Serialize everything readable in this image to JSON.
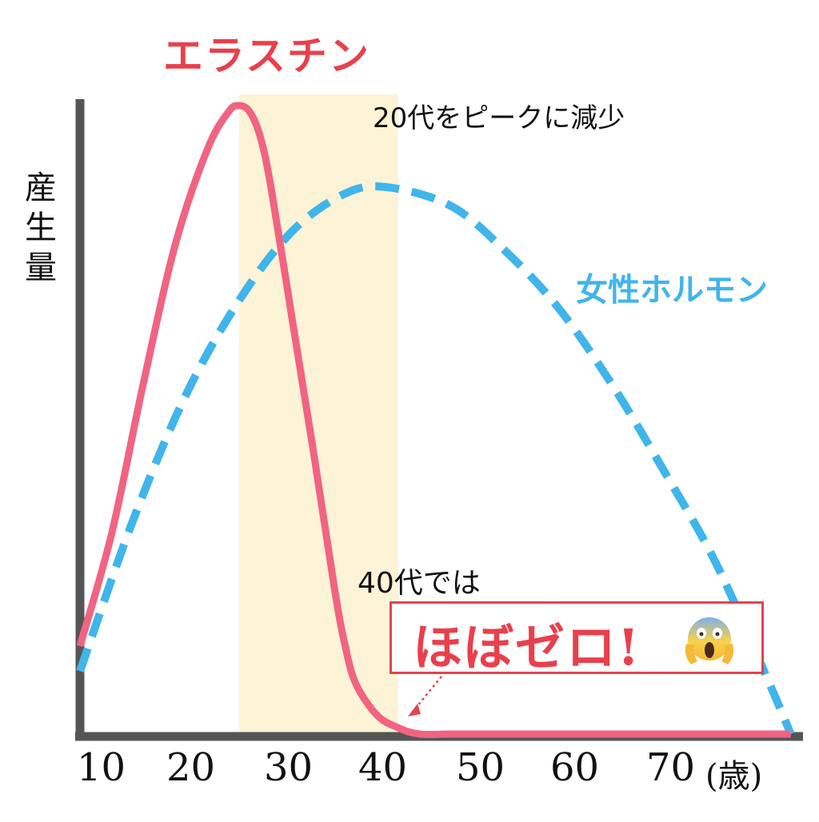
{
  "colors": {
    "elastin": "#f06482",
    "hormone": "#3fb5ec",
    "highlight": "#fdf3d6",
    "axis": "#555555",
    "callout_border": "#e0454f",
    "callout_text": "#e8404c"
  },
  "labels": {
    "elastin_title": "エラスチン",
    "hormone_title": "女性ホルモン",
    "ylabel": "産生量",
    "peak_annotation": "20代をピークに減少",
    "forties_annotation": "40代では",
    "callout": "ほぼゼロ!",
    "unit": "(歳)"
  },
  "icons": {
    "callout_emoji": "face-screaming-in-fear-icon"
  },
  "chart_data": {
    "type": "line",
    "xlabel": "(歳)",
    "ylabel": "産生量",
    "x_ticks": [
      "10",
      "20",
      "30",
      "40",
      "50",
      "60",
      "70"
    ],
    "xlim": [
      10,
      78
    ],
    "ylim": [
      0,
      100
    ],
    "highlight_range": [
      25,
      40
    ],
    "grid": false,
    "series": [
      {
        "name": "エラスチン",
        "style": "solid",
        "color": "#f06482",
        "x": [
          10,
          13,
          16,
          19,
          22,
          24,
          25,
          26,
          27,
          28,
          30,
          32,
          34,
          35,
          36,
          38,
          40,
          42,
          45,
          50,
          60,
          70,
          77
        ],
        "y": [
          14,
          32,
          56,
          78,
          93,
          99,
          100,
          99,
          95,
          87,
          66,
          45,
          23,
          14,
          8,
          3,
          1,
          0,
          0,
          0,
          0,
          0,
          0
        ]
      },
      {
        "name": "女性ホルモン",
        "style": "dashed",
        "color": "#3fb5ec",
        "x": [
          10,
          15,
          20,
          25,
          30,
          35,
          39,
          45,
          50,
          55,
          60,
          65,
          70,
          75,
          77
        ],
        "y": [
          10,
          34,
          54,
          69,
          80,
          86,
          87,
          84,
          77,
          68,
          56,
          42,
          27,
          8,
          0
        ]
      }
    ]
  }
}
